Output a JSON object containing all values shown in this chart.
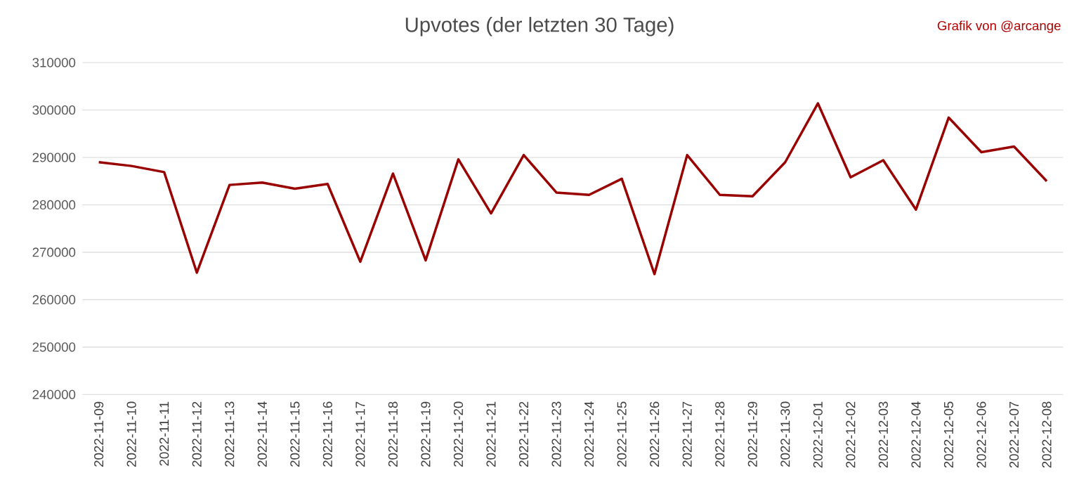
{
  "chart_data": {
    "type": "line",
    "title": "Upvotes (der letzten 30 Tage)",
    "annotations": [
      "Grafik von @arcange"
    ],
    "categories": [
      "2022-11-09",
      "2022-11-10",
      "2022-11-11",
      "2022-11-12",
      "2022-11-13",
      "2022-11-14",
      "2022-11-15",
      "2022-11-16",
      "2022-11-17",
      "2022-11-18",
      "2022-11-19",
      "2022-11-20",
      "2022-11-21",
      "2022-11-22",
      "2022-11-23",
      "2022-11-24",
      "2022-11-25",
      "2022-11-26",
      "2022-11-27",
      "2022-11-28",
      "2022-11-29",
      "2022-11-30",
      "2022-12-01",
      "2022-12-02",
      "2022-12-03",
      "2022-12-04",
      "2022-12-05",
      "2022-12-06",
      "2022-12-07",
      "2022-12-08"
    ],
    "series": [
      {
        "color": "#990000",
        "values": [
          289000,
          288200,
          286900,
          265700,
          284200,
          284700,
          283400,
          284400,
          268000,
          286600,
          268300,
          289600,
          278200,
          290500,
          282600,
          282100,
          285500,
          265400,
          290500,
          282100,
          281800,
          289000,
          301400,
          285800,
          289400,
          279000,
          298400,
          291100,
          292300,
          285000
        ]
      }
    ],
    "ylim": [
      240000,
      310000
    ],
    "yticks": [
      240000,
      250000,
      260000,
      270000,
      280000,
      290000,
      300000,
      310000
    ],
    "grid": "y",
    "marker": "none",
    "line_style": "solid"
  }
}
